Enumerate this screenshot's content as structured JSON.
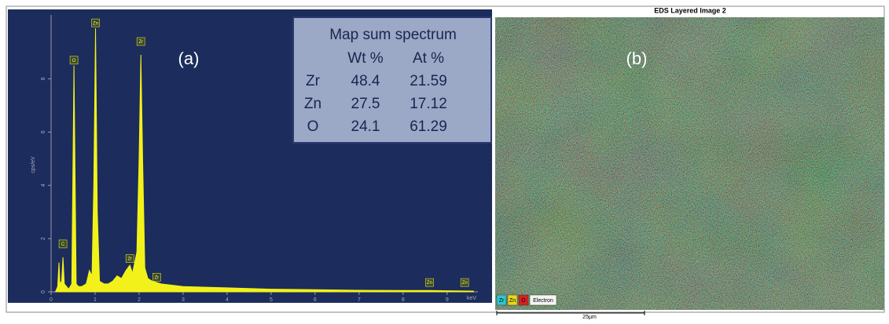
{
  "chart_data": {
    "type": "line",
    "color": "#f2f21a",
    "x": [
      0.1,
      0.15,
      0.18,
      0.2,
      0.24,
      0.27,
      0.3,
      0.35,
      0.4,
      0.47,
      0.52,
      0.57,
      0.62,
      0.7,
      0.8,
      0.87,
      0.93,
      0.97,
      1.01,
      1.05,
      1.1,
      1.2,
      1.3,
      1.4,
      1.5,
      1.6,
      1.7,
      1.79,
      1.85,
      1.95,
      2.0,
      2.04,
      2.08,
      2.13,
      2.2,
      2.3,
      2.5,
      3,
      4,
      5,
      6,
      7,
      8,
      8.6,
      9,
      9.6
    ],
    "values": [
      0,
      0.2,
      1.1,
      0.3,
      0.4,
      1.3,
      0.3,
      0.2,
      0.1,
      0.3,
      8.5,
      0.3,
      0.2,
      0.2,
      0.3,
      0.8,
      0.6,
      4,
      9.9,
      3,
      0.4,
      0.3,
      0.3,
      0.4,
      0.6,
      0.5,
      0.8,
      1.0,
      0.7,
      1.5,
      5,
      8.9,
      5,
      0.9,
      0.5,
      0.4,
      0.3,
      0.2,
      0.15,
      0.1,
      0.08,
      0.06,
      0.05,
      0.05,
      0.04,
      0.03
    ],
    "xlim": [
      0,
      9.7
    ],
    "ylim": [
      0,
      10.4
    ],
    "xticks": [
      0,
      1,
      2,
      3,
      4,
      5,
      6,
      7,
      8,
      9
    ],
    "yticks": [
      0,
      2,
      4,
      6,
      8
    ],
    "x_label": "keV",
    "y_label": "cps/eV",
    "peak_labels": {
      "labels": [
        "C",
        "O",
        "Zn",
        "Zr",
        "Zr",
        "Zr",
        "Zn",
        "Zn"
      ],
      "x": [
        0.27,
        0.52,
        1.01,
        2.04,
        1.79,
        2.4,
        8.6,
        9.4
      ],
      "y": [
        1.8,
        8.7,
        10.1,
        9.4,
        1.25,
        0.55,
        0.35,
        0.35
      ]
    },
    "panel_label": "(a)"
  },
  "table": {
    "title": "Map sum spectrum",
    "headers": [
      "Wt %",
      "At %"
    ],
    "rows": [
      [
        "Zr",
        "48.4",
        "21.59"
      ],
      [
        "Zn",
        "27.5",
        "17.12"
      ],
      [
        "O",
        "24.1",
        "61.29"
      ]
    ]
  },
  "map": {
    "title": "EDS Layered Image 2",
    "panel_label": "(b)",
    "legend": [
      "Zr",
      "Zn",
      "O",
      "Electron"
    ],
    "scale_bar": "25µm"
  }
}
